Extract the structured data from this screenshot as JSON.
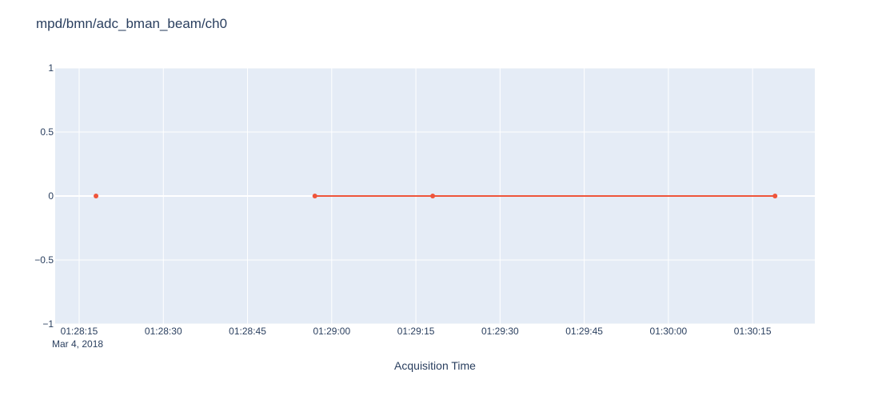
{
  "chart_data": {
    "type": "line",
    "title": "mpd/bmn/adc_bman_beam/ch0",
    "xlabel": "Acquisition Time",
    "ylabel": "",
    "x_date": "Mar 4, 2018",
    "x_ticks": [
      "01:28:15",
      "01:28:30",
      "01:28:45",
      "01:29:00",
      "01:29:15",
      "01:29:30",
      "01:29:45",
      "01:30:00",
      "01:30:15"
    ],
    "y_ticks": [
      "1",
      "0.5",
      "0",
      "−0.5",
      "−1"
    ],
    "ylim": [
      -1,
      1
    ],
    "xlim": [
      "01:28:15",
      "01:30:25"
    ],
    "grid": true,
    "series": [
      {
        "points": [
          {
            "x": "01:28:18",
            "y": 0
          },
          {
            "x": "01:28:57",
            "y": 0
          },
          {
            "x": "01:29:18",
            "y": 0
          },
          {
            "x": "01:30:19",
            "y": 0
          }
        ],
        "segments": [
          [
            0
          ],
          [
            1,
            2,
            3
          ]
        ]
      }
    ],
    "colors": {
      "plot_bg": "#e5ecf6",
      "grid": "#ffffff",
      "line": "#ef553b",
      "text": "#2a3f5f"
    }
  }
}
